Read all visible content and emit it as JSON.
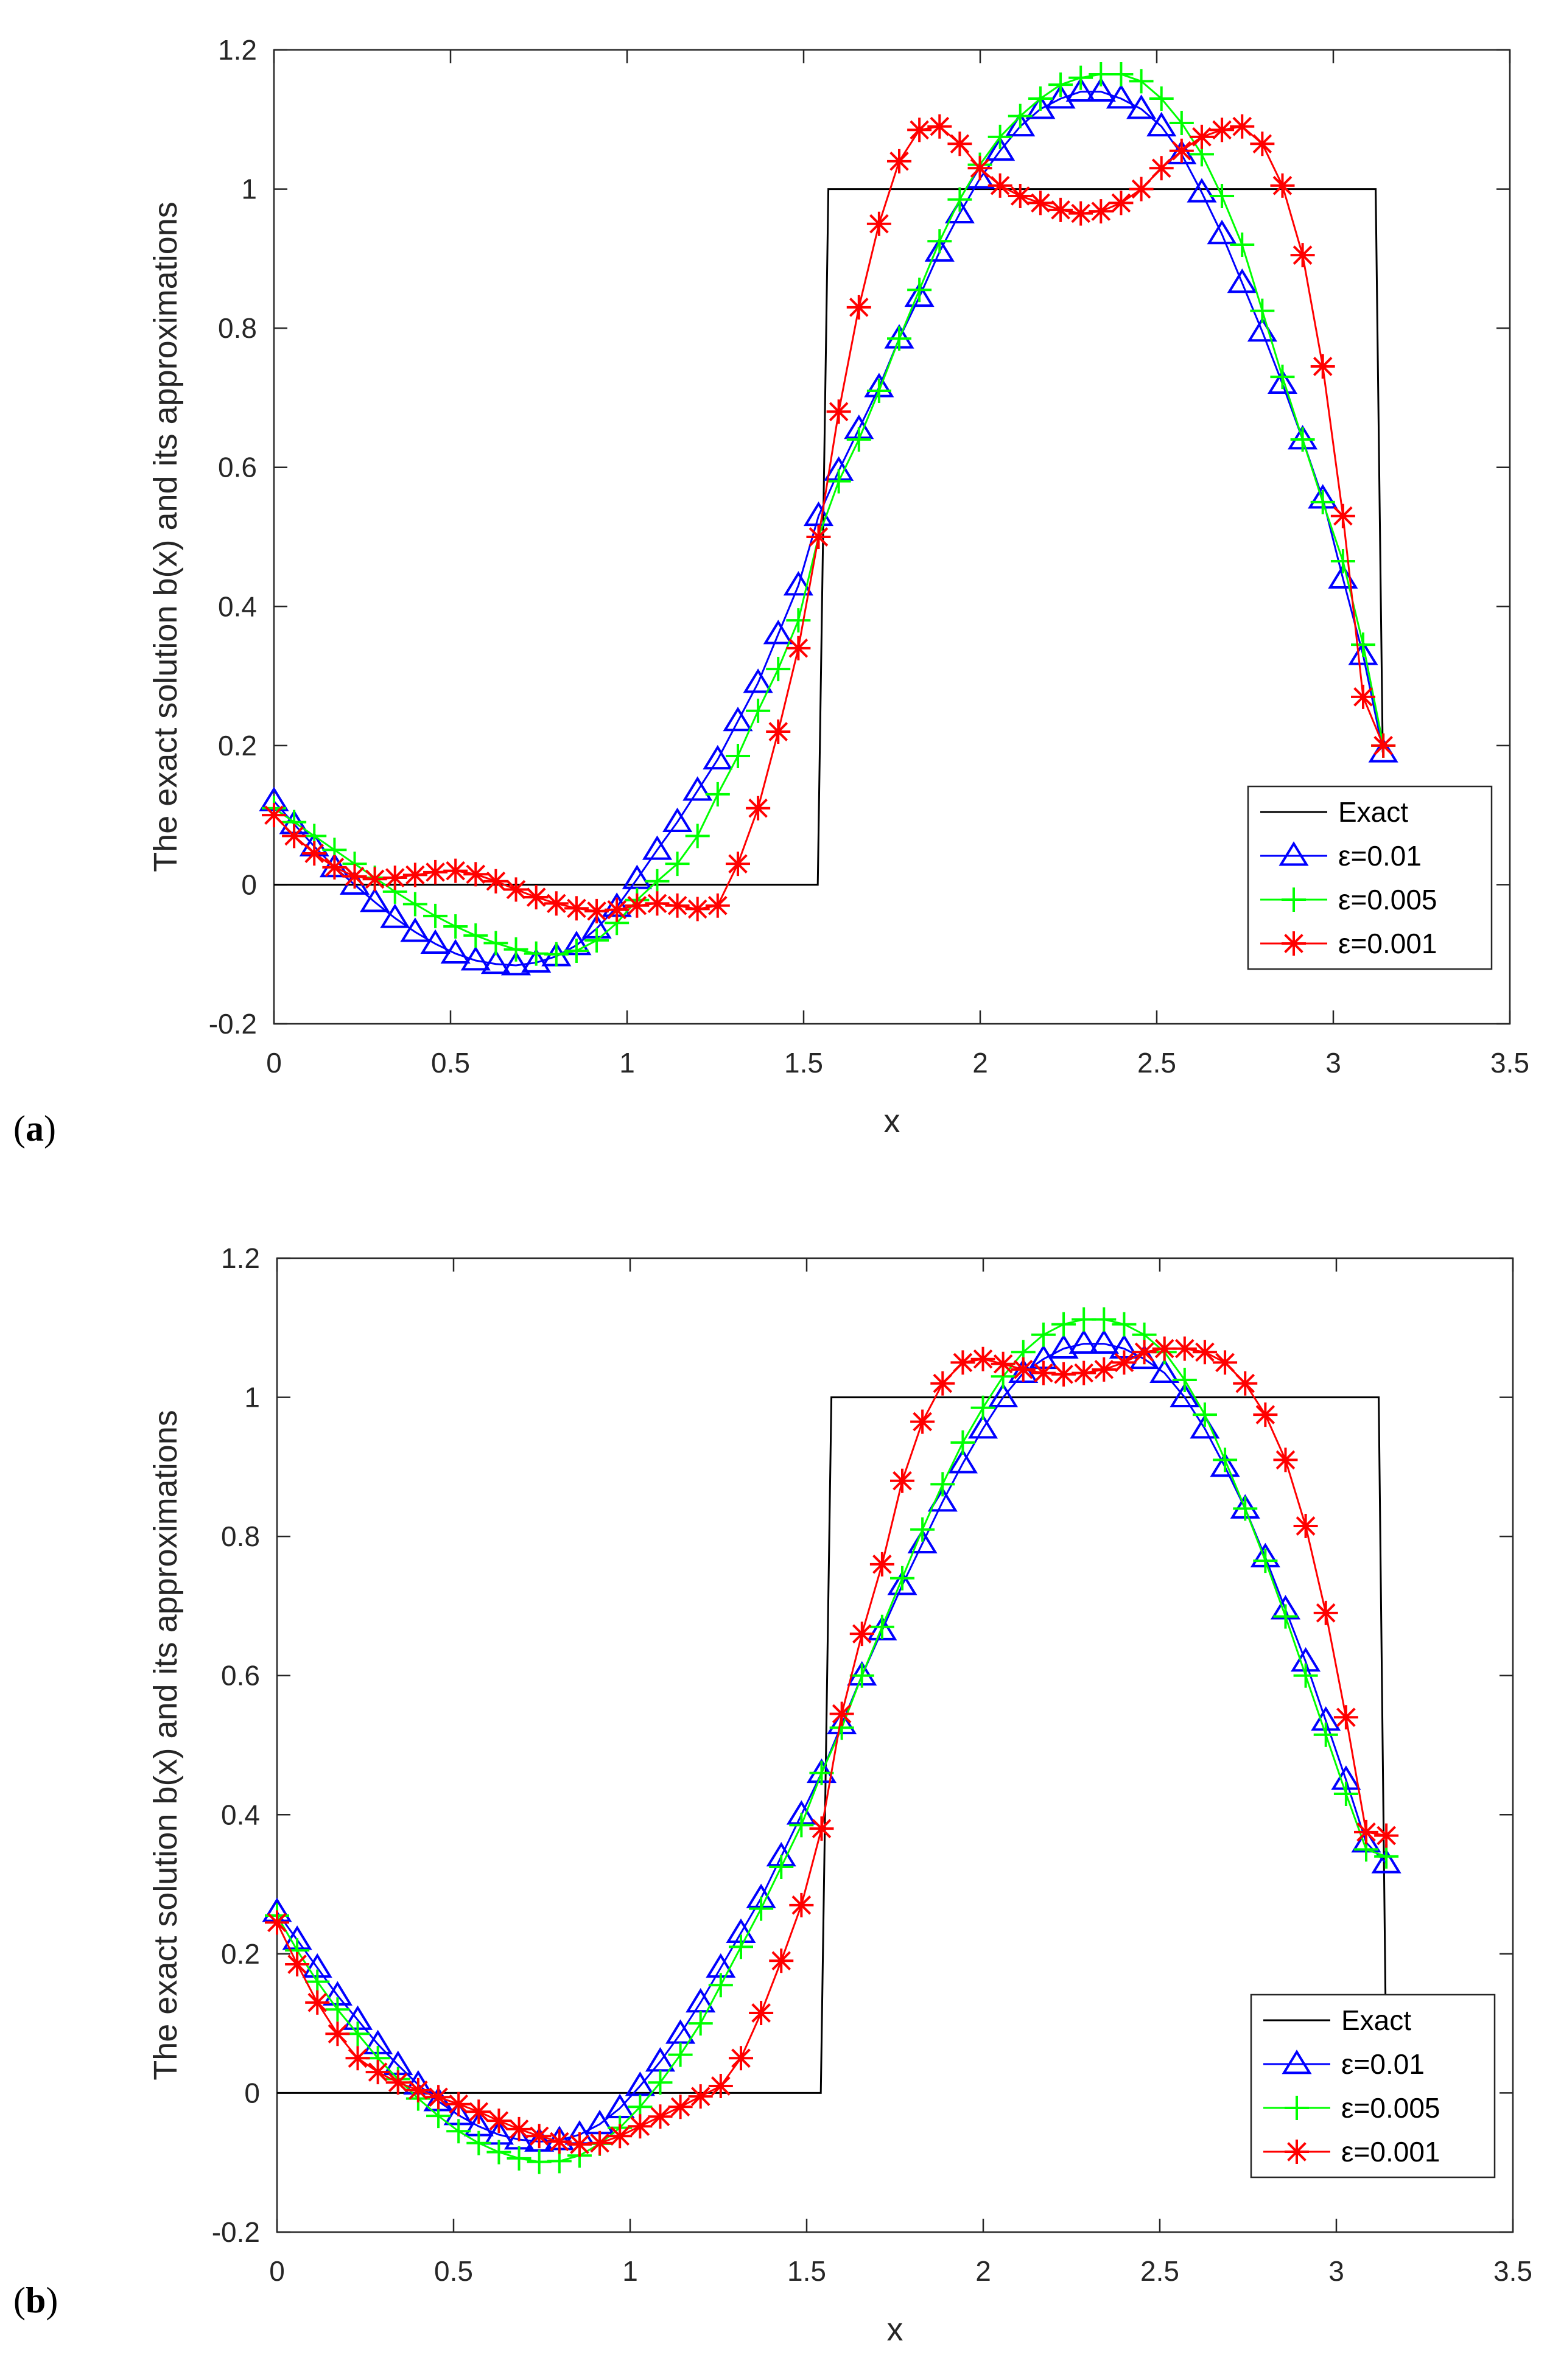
{
  "chart_data": [
    {
      "type": "line",
      "panel_label": "a",
      "xlabel": "x",
      "ylabel": "The exact solution b(x) and its approximations",
      "xlim": [
        0,
        3.5
      ],
      "ylim": [
        -0.2,
        1.2
      ],
      "xticks": [
        "0",
        "0.5",
        "1",
        "1.5",
        "2",
        "2.5",
        "3",
        "3.5"
      ],
      "yticks": [
        "-0.2",
        "0",
        "0.2",
        "0.4",
        "0.6",
        "0.8",
        "1",
        "1.2"
      ],
      "legend_position": "bottom-right",
      "exact": {
        "name": "Exact",
        "color": "#000000",
        "x": [
          0,
          1.54,
          1.57,
          3.12,
          3.14
        ],
        "y": [
          0,
          0,
          1,
          1,
          0.19
        ]
      },
      "series": [
        {
          "name": "ε=0.01",
          "color": "#0000ff",
          "marker": "triangle",
          "x": [
            0.0,
            0.0571,
            0.1142,
            0.1714,
            0.2285,
            0.2856,
            0.3427,
            0.3998,
            0.457,
            0.5141,
            0.5712,
            0.6283,
            0.6854,
            0.7426,
            0.7997,
            0.8568,
            0.9139,
            0.971,
            1.0282,
            1.0853,
            1.1424,
            1.1995,
            1.2566,
            1.3138,
            1.3709,
            1.428,
            1.4851,
            1.5422,
            1.5994,
            1.6565,
            1.7136,
            1.7707,
            1.8278,
            1.885,
            1.9421,
            1.9992,
            2.0563,
            2.1134,
            2.1706,
            2.2277,
            2.2848,
            2.3419,
            2.399,
            2.4562,
            2.5133,
            2.5704,
            2.6275,
            2.6846,
            2.7418,
            2.7989,
            2.856,
            2.9131,
            2.9702,
            3.0274,
            3.0845,
            3.1416
          ],
          "y": [
            0.12,
            0.087,
            0.055,
            0.025,
            0.0,
            -0.025,
            -0.048,
            -0.068,
            -0.085,
            -0.099,
            -0.109,
            -0.114,
            -0.116,
            -0.112,
            -0.103,
            -0.087,
            -0.063,
            -0.032,
            0.008,
            0.05,
            0.09,
            0.135,
            0.18,
            0.235,
            0.29,
            0.36,
            0.43,
            0.53,
            0.595,
            0.655,
            0.715,
            0.785,
            0.845,
            0.91,
            0.965,
            1.015,
            1.055,
            1.09,
            1.115,
            1.13,
            1.14,
            1.14,
            1.13,
            1.115,
            1.09,
            1.05,
            0.995,
            0.935,
            0.865,
            0.795,
            0.72,
            0.64,
            0.555,
            0.44,
            0.33,
            0.19
          ]
        },
        {
          "name": "ε=0.005",
          "color": "#00ff00",
          "marker": "plus",
          "x": [
            0.0,
            0.0571,
            0.1142,
            0.1714,
            0.2285,
            0.2856,
            0.3427,
            0.3998,
            0.457,
            0.5141,
            0.5712,
            0.6283,
            0.6854,
            0.7426,
            0.7997,
            0.8568,
            0.9139,
            0.971,
            1.0282,
            1.0853,
            1.1424,
            1.1995,
            1.2566,
            1.3138,
            1.3709,
            1.428,
            1.4851,
            1.5422,
            1.5994,
            1.6565,
            1.7136,
            1.7707,
            1.8278,
            1.885,
            1.9421,
            1.9992,
            2.0563,
            2.1134,
            2.1706,
            2.2277,
            2.2848,
            2.3419,
            2.399,
            2.4562,
            2.5133,
            2.5704,
            2.6275,
            2.6846,
            2.7418,
            2.7989,
            2.856,
            2.9131,
            2.9702,
            3.0274,
            3.0845,
            3.1416
          ],
          "y": [
            0.11,
            0.09,
            0.07,
            0.05,
            0.03,
            0.01,
            -0.01,
            -0.028,
            -0.045,
            -0.06,
            -0.073,
            -0.084,
            -0.093,
            -0.099,
            -0.1,
            -0.095,
            -0.08,
            -0.055,
            -0.022,
            0.005,
            0.03,
            0.07,
            0.13,
            0.185,
            0.25,
            0.31,
            0.38,
            0.5,
            0.58,
            0.64,
            0.71,
            0.785,
            0.855,
            0.925,
            0.985,
            1.035,
            1.075,
            1.105,
            1.13,
            1.15,
            1.16,
            1.165,
            1.165,
            1.155,
            1.13,
            1.095,
            1.05,
            0.99,
            0.92,
            0.825,
            0.73,
            0.64,
            0.55,
            0.465,
            0.345,
            0.2
          ]
        },
        {
          "name": "ε=0.001",
          "color": "#ff0000",
          "marker": "star",
          "x": [
            0.0,
            0.0571,
            0.1142,
            0.1714,
            0.2285,
            0.2856,
            0.3427,
            0.3998,
            0.457,
            0.5141,
            0.5712,
            0.6283,
            0.6854,
            0.7426,
            0.7997,
            0.8568,
            0.9139,
            0.971,
            1.0282,
            1.0853,
            1.1424,
            1.1995,
            1.2566,
            1.3138,
            1.3709,
            1.428,
            1.4851,
            1.5422,
            1.5994,
            1.6565,
            1.7136,
            1.7707,
            1.8278,
            1.885,
            1.9421,
            1.9992,
            2.0563,
            2.1134,
            2.1706,
            2.2277,
            2.2848,
            2.3419,
            2.399,
            2.4562,
            2.5133,
            2.5704,
            2.6275,
            2.6846,
            2.7418,
            2.7989,
            2.856,
            2.9131,
            2.9702,
            3.0274,
            3.0845,
            3.1416
          ],
          "y": [
            0.1,
            0.07,
            0.045,
            0.025,
            0.012,
            0.008,
            0.01,
            0.014,
            0.018,
            0.02,
            0.015,
            0.005,
            -0.007,
            -0.018,
            -0.027,
            -0.034,
            -0.038,
            -0.036,
            -0.03,
            -0.027,
            -0.03,
            -0.035,
            -0.03,
            0.03,
            0.11,
            0.22,
            0.34,
            0.5,
            0.68,
            0.83,
            0.95,
            1.04,
            1.085,
            1.09,
            1.065,
            1.03,
            1.005,
            0.99,
            0.98,
            0.97,
            0.965,
            0.968,
            0.98,
            1.0,
            1.03,
            1.055,
            1.075,
            1.085,
            1.09,
            1.065,
            1.005,
            0.905,
            0.745,
            0.53,
            0.27,
            0.2
          ]
        }
      ]
    },
    {
      "type": "line",
      "panel_label": "b",
      "xlabel": "x",
      "ylabel": "The exact solution b(x) and its approximations",
      "xlim": [
        0,
        3.5
      ],
      "ylim": [
        -0.2,
        1.2
      ],
      "xticks": [
        "0",
        "0.5",
        "1",
        "1.5",
        "2",
        "2.5",
        "3",
        "3.5"
      ],
      "yticks": [
        "-0.2",
        "0",
        "0.2",
        "0.4",
        "0.6",
        "0.8",
        "1",
        "1.2"
      ],
      "legend_position": "bottom-right",
      "exact": {
        "name": "Exact",
        "color": "#000000",
        "x": [
          0,
          1.54,
          1.57,
          3.12,
          3.14
        ],
        "y": [
          0,
          0,
          1,
          1,
          0.1
        ]
      },
      "series": [
        {
          "name": "ε=0.01",
          "color": "#0000ff",
          "marker": "triangle",
          "x": [
            0.0,
            0.0571,
            0.1142,
            0.1714,
            0.2285,
            0.2856,
            0.3427,
            0.3998,
            0.457,
            0.5141,
            0.5712,
            0.6283,
            0.6854,
            0.7426,
            0.7997,
            0.8568,
            0.9139,
            0.971,
            1.0282,
            1.0853,
            1.1424,
            1.1995,
            1.2566,
            1.3138,
            1.3709,
            1.428,
            1.4851,
            1.5422,
            1.5994,
            1.6565,
            1.7136,
            1.7707,
            1.8278,
            1.885,
            1.9421,
            1.9992,
            2.0563,
            2.1134,
            2.1706,
            2.2277,
            2.2848,
            2.3419,
            2.399,
            2.4562,
            2.5133,
            2.5704,
            2.6275,
            2.6846,
            2.7418,
            2.7989,
            2.856,
            2.9131,
            2.9702,
            3.0274,
            3.0845,
            3.1416
          ],
          "y": [
            0.26,
            0.22,
            0.18,
            0.14,
            0.105,
            0.07,
            0.04,
            0.012,
            -0.012,
            -0.032,
            -0.048,
            -0.06,
            -0.067,
            -0.07,
            -0.068,
            -0.06,
            -0.045,
            -0.022,
            0.01,
            0.045,
            0.085,
            0.13,
            0.18,
            0.23,
            0.28,
            0.34,
            0.4,
            0.46,
            0.53,
            0.6,
            0.665,
            0.73,
            0.79,
            0.85,
            0.905,
            0.955,
            1.0,
            1.035,
            1.055,
            1.07,
            1.077,
            1.077,
            1.07,
            1.055,
            1.035,
            1.0,
            0.955,
            0.9,
            0.84,
            0.77,
            0.695,
            0.62,
            0.535,
            0.45,
            0.36,
            0.33
          ]
        },
        {
          "name": "ε=0.005",
          "color": "#00ff00",
          "marker": "plus",
          "x": [
            0.0,
            0.0571,
            0.1142,
            0.1714,
            0.2285,
            0.2856,
            0.3427,
            0.3998,
            0.457,
            0.5141,
            0.5712,
            0.6283,
            0.6854,
            0.7426,
            0.7997,
            0.8568,
            0.9139,
            0.971,
            1.0282,
            1.0853,
            1.1424,
            1.1995,
            1.2566,
            1.3138,
            1.3709,
            1.428,
            1.4851,
            1.5422,
            1.5994,
            1.6565,
            1.7136,
            1.7707,
            1.8278,
            1.885,
            1.9421,
            1.9992,
            2.0563,
            2.1134,
            2.1706,
            2.2277,
            2.2848,
            2.3419,
            2.399,
            2.4562,
            2.5133,
            2.5704,
            2.6275,
            2.6846,
            2.7418,
            2.7989,
            2.856,
            2.9131,
            2.9702,
            3.0274,
            3.0845,
            3.1416
          ],
          "y": [
            0.255,
            0.205,
            0.16,
            0.12,
            0.085,
            0.05,
            0.02,
            -0.008,
            -0.033,
            -0.055,
            -0.072,
            -0.085,
            -0.094,
            -0.099,
            -0.098,
            -0.09,
            -0.073,
            -0.05,
            -0.02,
            0.015,
            0.055,
            0.1,
            0.155,
            0.21,
            0.265,
            0.325,
            0.385,
            0.46,
            0.525,
            0.6,
            0.67,
            0.74,
            0.81,
            0.875,
            0.935,
            0.985,
            1.03,
            1.065,
            1.09,
            1.105,
            1.112,
            1.112,
            1.105,
            1.09,
            1.065,
            1.025,
            0.975,
            0.91,
            0.84,
            0.765,
            0.685,
            0.6,
            0.515,
            0.43,
            0.35,
            0.34
          ]
        },
        {
          "name": "ε=0.001",
          "color": "#ff0000",
          "marker": "star",
          "x": [
            0.0,
            0.0571,
            0.1142,
            0.1714,
            0.2285,
            0.2856,
            0.3427,
            0.3998,
            0.457,
            0.5141,
            0.5712,
            0.6283,
            0.6854,
            0.7426,
            0.7997,
            0.8568,
            0.9139,
            0.971,
            1.0282,
            1.0853,
            1.1424,
            1.1995,
            1.2566,
            1.3138,
            1.3709,
            1.428,
            1.4851,
            1.5422,
            1.5994,
            1.6565,
            1.7136,
            1.7707,
            1.8278,
            1.885,
            1.9421,
            1.9992,
            2.0563,
            2.1134,
            2.1706,
            2.2277,
            2.2848,
            2.3419,
            2.399,
            2.4562,
            2.5133,
            2.5704,
            2.6275,
            2.6846,
            2.7418,
            2.7989,
            2.856,
            2.9131,
            2.9702,
            3.0274,
            3.0845,
            3.1416
          ],
          "y": [
            0.245,
            0.185,
            0.13,
            0.085,
            0.05,
            0.03,
            0.015,
            0.004,
            -0.006,
            -0.016,
            -0.027,
            -0.04,
            -0.052,
            -0.062,
            -0.07,
            -0.074,
            -0.072,
            -0.062,
            -0.048,
            -0.034,
            -0.02,
            -0.005,
            0.01,
            0.05,
            0.115,
            0.19,
            0.27,
            0.38,
            0.545,
            0.66,
            0.76,
            0.88,
            0.965,
            1.02,
            1.05,
            1.055,
            1.048,
            1.04,
            1.035,
            1.033,
            1.035,
            1.04,
            1.05,
            1.065,
            1.07,
            1.07,
            1.065,
            1.05,
            1.02,
            0.975,
            0.91,
            0.815,
            0.69,
            0.54,
            0.375,
            0.37
          ]
        }
      ]
    }
  ]
}
